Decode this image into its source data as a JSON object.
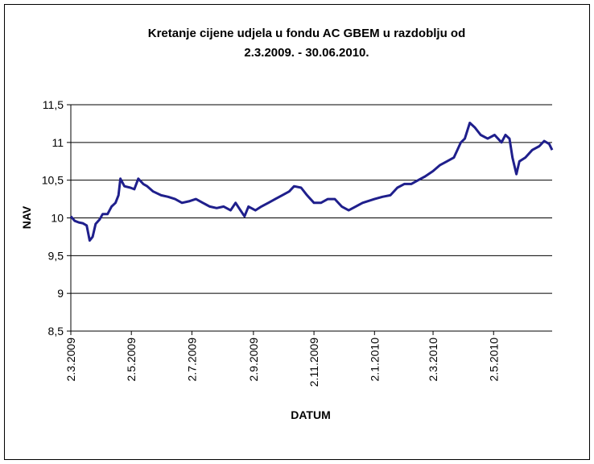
{
  "chart_data": {
    "type": "line",
    "title": [
      "Kretanje cijene udjela u fondu AC GBEM u razdoblju od",
      "2.3.2009. - 30.06.2010."
    ],
    "xlabel": "DATUM",
    "ylabel": "NAV",
    "x": [
      "2009-03-02",
      "2009-03-06",
      "2009-03-10",
      "2009-03-14",
      "2009-03-18",
      "2009-03-21",
      "2009-03-24",
      "2009-03-27",
      "2009-03-31",
      "2009-04-03",
      "2009-04-08",
      "2009-04-12",
      "2009-04-16",
      "2009-04-19",
      "2009-04-21",
      "2009-04-25",
      "2009-05-01",
      "2009-05-05",
      "2009-05-09",
      "2009-05-14",
      "2009-05-18",
      "2009-05-24",
      "2009-06-01",
      "2009-06-08",
      "2009-06-15",
      "2009-06-22",
      "2009-06-29",
      "2009-07-06",
      "2009-07-13",
      "2009-07-20",
      "2009-07-27",
      "2009-08-03",
      "2009-08-10",
      "2009-08-15",
      "2009-08-19",
      "2009-08-24",
      "2009-08-28",
      "2009-09-04",
      "2009-09-10",
      "2009-09-17",
      "2009-09-24",
      "2009-10-01",
      "2009-10-08",
      "2009-10-13",
      "2009-10-20",
      "2009-10-26",
      "2009-11-02",
      "2009-11-09",
      "2009-11-16",
      "2009-11-23",
      "2009-11-30",
      "2009-12-07",
      "2009-12-14",
      "2009-12-21",
      "2010-01-02",
      "2010-01-10",
      "2010-01-18",
      "2010-01-25",
      "2010-02-01",
      "2010-02-08",
      "2010-02-15",
      "2010-02-22",
      "2010-03-02",
      "2010-03-09",
      "2010-03-16",
      "2010-03-23",
      "2010-03-30",
      "2010-04-03",
      "2010-04-08",
      "2010-04-13",
      "2010-04-19",
      "2010-04-26",
      "2010-05-03",
      "2010-05-10",
      "2010-05-14",
      "2010-05-18",
      "2010-05-21",
      "2010-05-25",
      "2010-05-28",
      "2010-06-03",
      "2010-06-10",
      "2010-06-17",
      "2010-06-22",
      "2010-06-27",
      "2010-06-30"
    ],
    "series": [
      {
        "name": "NAV",
        "color": "#1f1f8c",
        "values": [
          10.02,
          9.96,
          9.94,
          9.93,
          9.9,
          9.7,
          9.75,
          9.92,
          9.98,
          10.05,
          10.05,
          10.15,
          10.2,
          10.3,
          10.52,
          10.42,
          10.4,
          10.38,
          10.52,
          10.45,
          10.42,
          10.35,
          10.3,
          10.28,
          10.25,
          10.2,
          10.22,
          10.25,
          10.2,
          10.15,
          10.13,
          10.15,
          10.1,
          10.2,
          10.12,
          10.02,
          10.15,
          10.1,
          10.15,
          10.2,
          10.25,
          10.3,
          10.35,
          10.42,
          10.4,
          10.3,
          10.2,
          10.2,
          10.25,
          10.25,
          10.15,
          10.1,
          10.15,
          10.2,
          10.25,
          10.28,
          10.3,
          10.4,
          10.45,
          10.45,
          10.5,
          10.55,
          10.62,
          10.7,
          10.75,
          10.8,
          11.0,
          11.05,
          11.26,
          11.2,
          11.1,
          11.05,
          11.1,
          11.0,
          11.1,
          11.05,
          10.8,
          10.58,
          10.75,
          10.8,
          10.9,
          10.95,
          11.02,
          10.98,
          10.9
        ]
      }
    ],
    "xlim": [
      "2009-03-02",
      "2010-06-30"
    ],
    "xticks": [
      {
        "value": "2009-03-02",
        "label": "2.3.2009"
      },
      {
        "value": "2009-05-02",
        "label": "2.5.2009"
      },
      {
        "value": "2009-07-02",
        "label": "2.7.2009"
      },
      {
        "value": "2009-09-02",
        "label": "2.9.2009"
      },
      {
        "value": "2009-11-02",
        "label": "2.11.2009"
      },
      {
        "value": "2010-01-02",
        "label": "2.1.2010"
      },
      {
        "value": "2010-03-02",
        "label": "2.3.2010"
      },
      {
        "value": "2010-05-02",
        "label": "2.5.2010"
      }
    ],
    "ylim": [
      8.5,
      11.5
    ],
    "yticks": [
      {
        "value": 8.5,
        "label": "8,5"
      },
      9,
      {
        "value": 9.5,
        "label": "9,5"
      },
      10,
      {
        "value": 10.5,
        "label": "10,5"
      },
      11,
      {
        "value": 11.5,
        "label": "11,5"
      }
    ],
    "grid": true
  }
}
